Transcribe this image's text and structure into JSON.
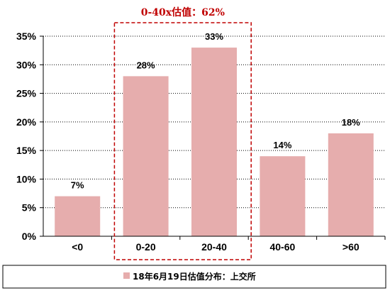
{
  "chart_data": {
    "type": "bar",
    "categories": [
      "<0",
      "0-20",
      "20-40",
      "40-60",
      ">60"
    ],
    "series": [
      {
        "name": "18年6月19日估值分布：上交所",
        "values": [
          7,
          28,
          33,
          14,
          18
        ]
      }
    ],
    "data_labels": [
      "7%",
      "28%",
      "33%",
      "14%",
      "18%"
    ],
    "y_ticks": [
      "0%",
      "5%",
      "10%",
      "15%",
      "20%",
      "25%",
      "30%",
      "35%"
    ],
    "ylim": [
      0,
      35
    ],
    "grid": "horizontal-dotted",
    "legend_position": "bottom",
    "annotation": {
      "text": "0-40x估值：62%",
      "spans_categories": [
        "0-20",
        "20-40"
      ]
    },
    "colors": {
      "bar": "#e6adad",
      "annotation": "#c00000",
      "grid": "#000000"
    }
  }
}
